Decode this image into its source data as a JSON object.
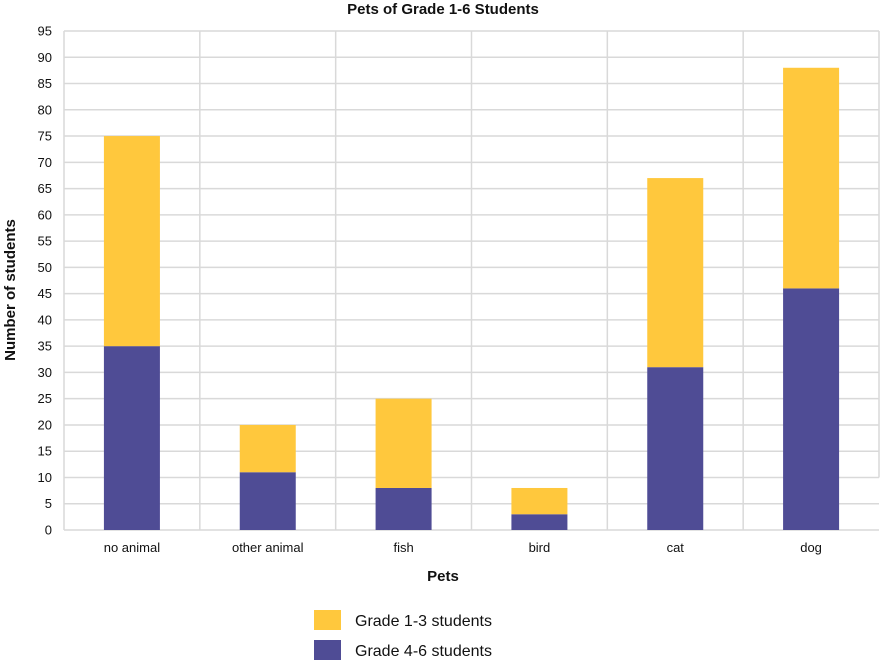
{
  "chart_data": {
    "type": "bar",
    "stacked": true,
    "title": "Pets of Grade 1-6 Students",
    "xlabel": "Pets",
    "ylabel": "Number of students",
    "categories": [
      "no animal",
      "other animal",
      "fish",
      "bird",
      "cat",
      "dog"
    ],
    "series": [
      {
        "name": "Grade 4-6 students",
        "color": "#4f4c95",
        "values": [
          35,
          11,
          8,
          3,
          31,
          46
        ]
      },
      {
        "name": "Grade 1-3 students",
        "color": "#ffc83d",
        "values": [
          40,
          9,
          17,
          5,
          36,
          42
        ]
      }
    ],
    "ylim": [
      0,
      95
    ],
    "ytick_step": 5,
    "grid": true,
    "legend_position": "bottom"
  }
}
